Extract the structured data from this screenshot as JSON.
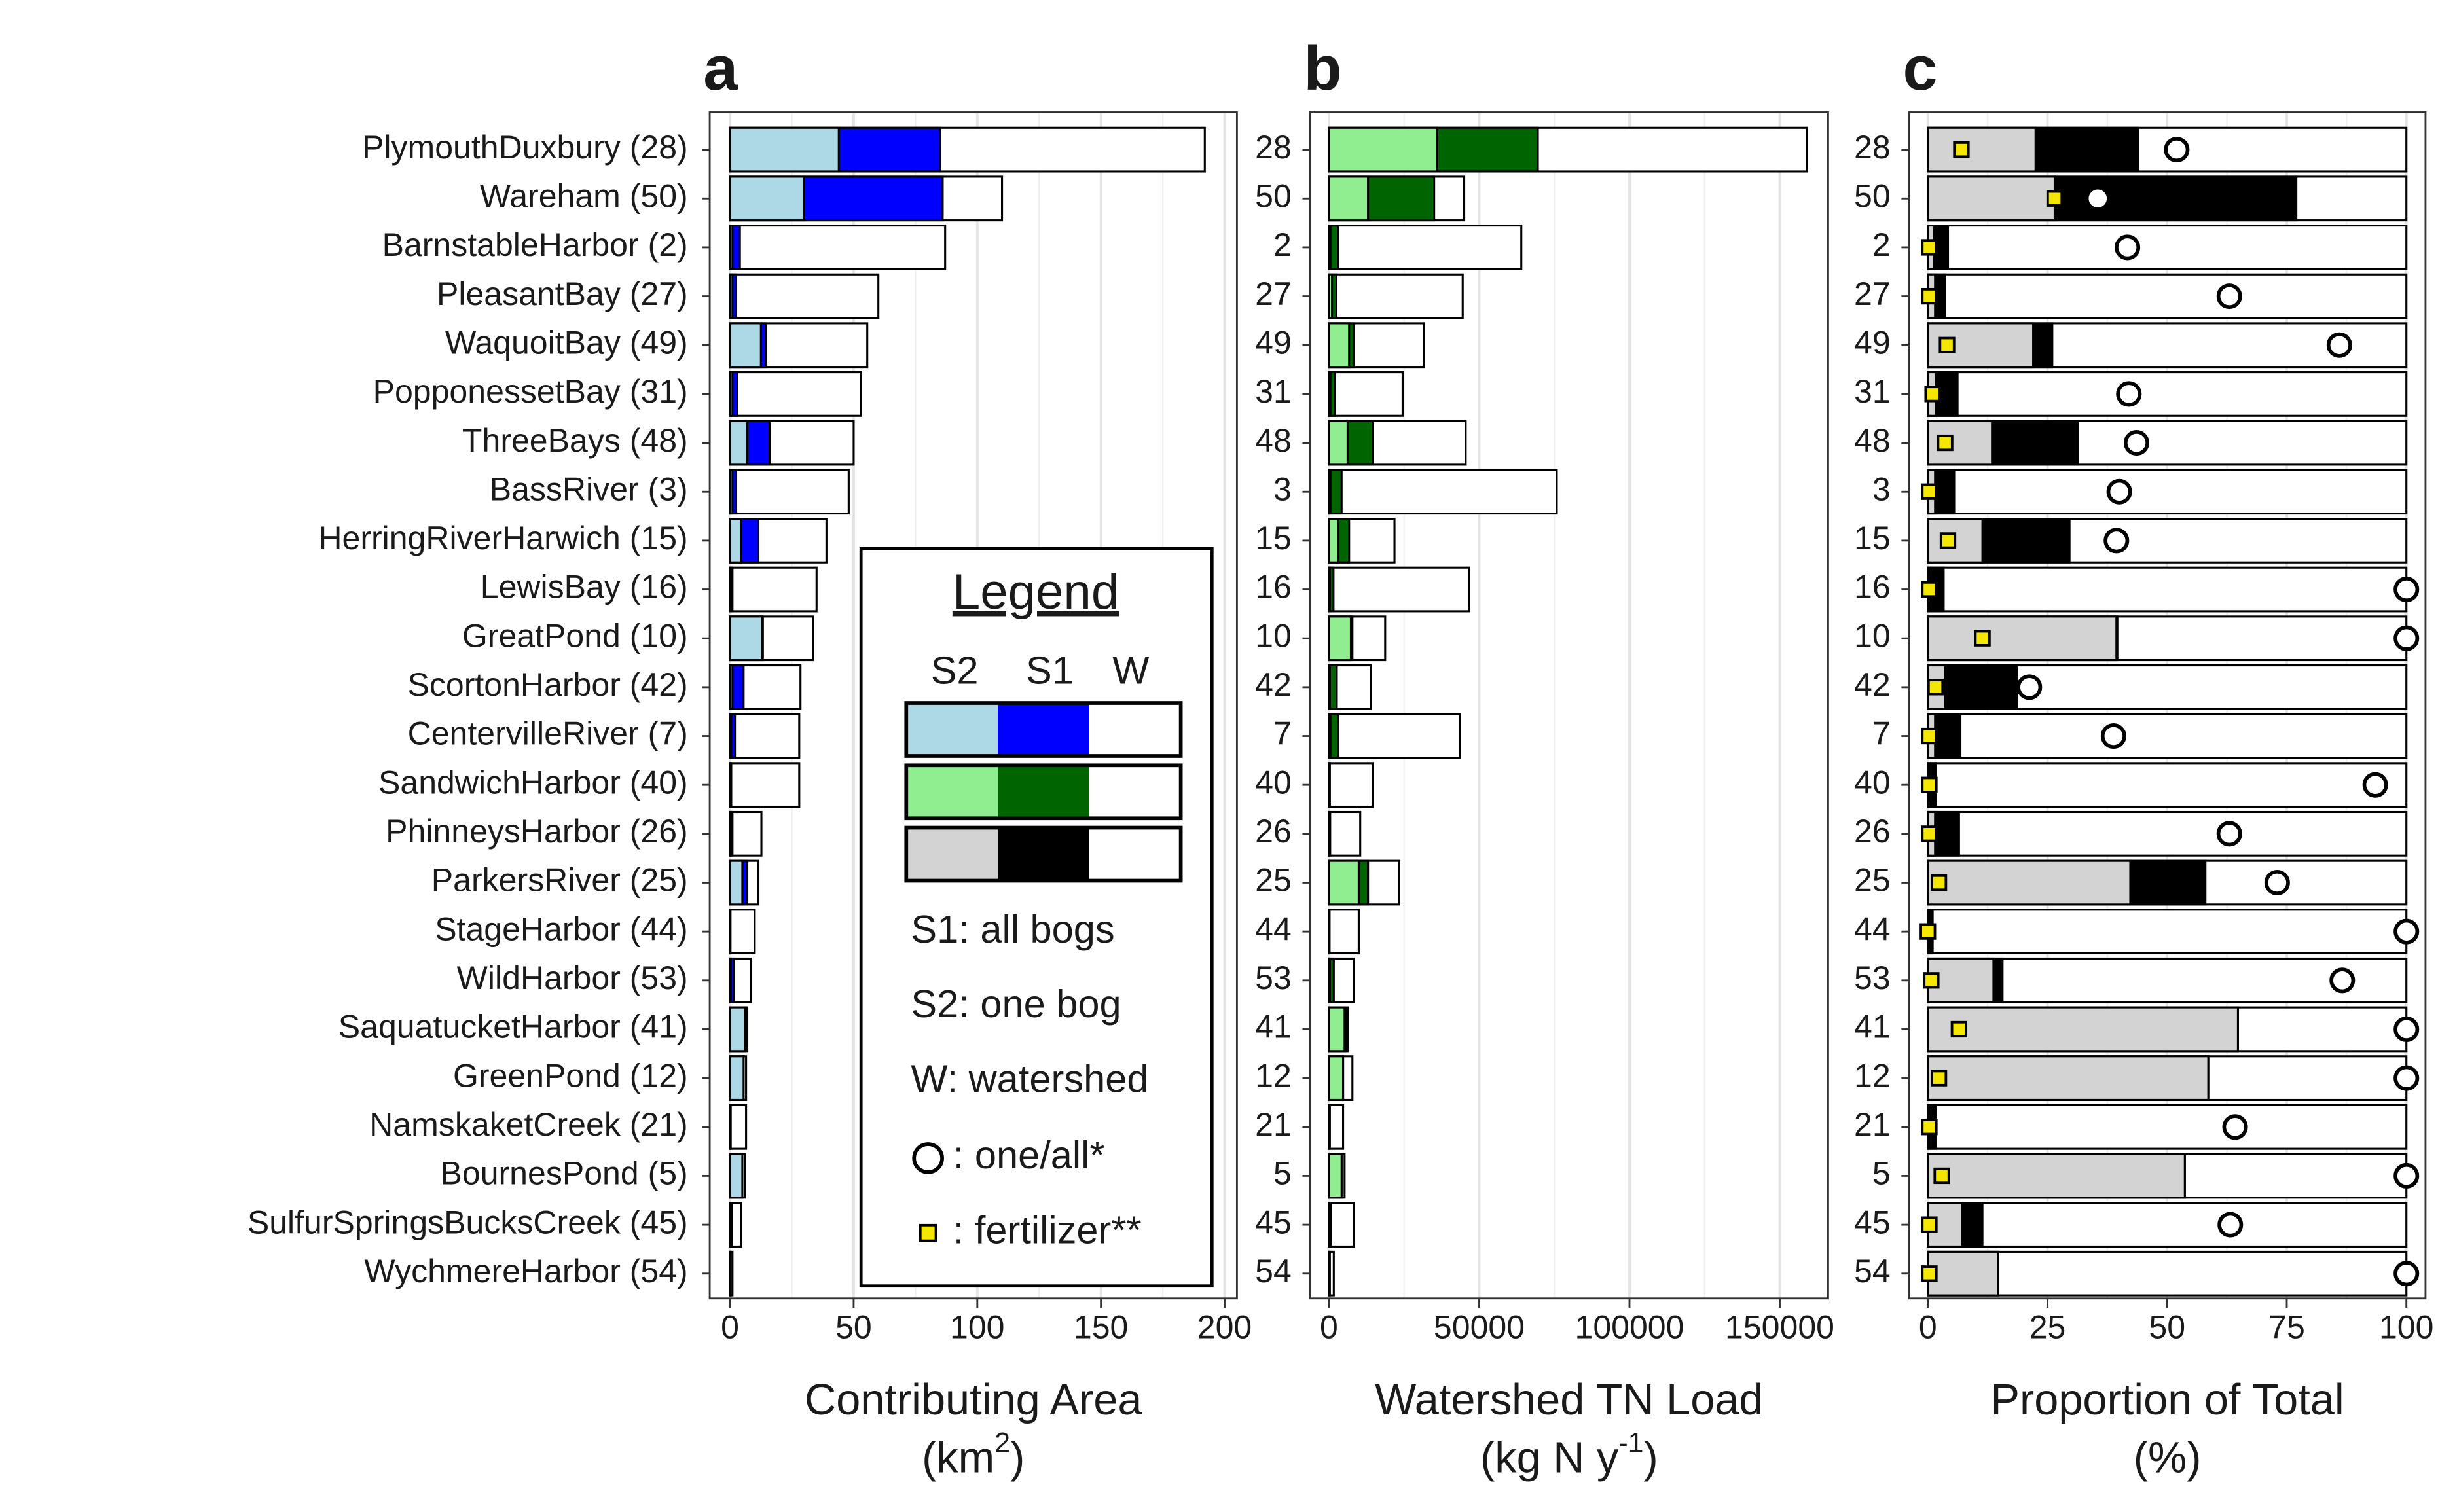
{
  "chart_data": [
    {
      "type": "bar",
      "panel_label": "a",
      "xlabel": "Contributing Area",
      "xunit": {
        "pre": "(km",
        "sup": "2",
        "post": ")"
      },
      "categories": [
        "PlymouthDuxbury (28)",
        "Wareham (50)",
        "BarnstableHarbor (2)",
        "PleasantBay (27)",
        "WaquoitBay (49)",
        "PopponessetBay (31)",
        "ThreeBays (48)",
        "BassRiver (3)",
        "HerringRiverHarwich (15)",
        "LewisBay (16)",
        "GreatPond (10)",
        "ScortonHarbor (42)",
        "CentervilleRiver (7)",
        "SandwichHarbor (40)",
        "PhinneysHarbor (26)",
        "ParkersRiver (25)",
        "StageHarbor (44)",
        "WildHarbor (53)",
        "SaquatucketHarbor (41)",
        "GreenPond (12)",
        "NamskaketCreek (21)",
        "BournesPond (5)",
        "SulfurSpringsBucksCreek (45)",
        "WychmereHarbor (54)"
      ],
      "series": [
        {
          "name": "W",
          "color": "#ffffff",
          "values": [
            192,
            110,
            87,
            60,
            55.5,
            53,
            50,
            48,
            39,
            35,
            33.5,
            28.5,
            28,
            28,
            12.7,
            11.5,
            10,
            8.5,
            7,
            6.5,
            6.5,
            6,
            4.5,
            1
          ]
        },
        {
          "name": "S1",
          "color": "#0000ff",
          "values": [
            85,
            86,
            4,
            2.5,
            14.5,
            3,
            16,
            2.5,
            11.5,
            1,
            13.3,
            5.5,
            2,
            0.5,
            1,
            7,
            0.2,
            1.5,
            6,
            5.5,
            0.3,
            5,
            0.8,
            0.2
          ]
        },
        {
          "name": "S2",
          "color": "#add8e6",
          "values": [
            44,
            30,
            1,
            1,
            12.5,
            1,
            7,
            1,
            4.5,
            0.5,
            13,
            1,
            0.5,
            0.2,
            0.2,
            5,
            0.1,
            0.3,
            6,
            5.5,
            0.1,
            5,
            0.3,
            0.1
          ]
        }
      ],
      "xlim": [
        -8.2,
        205
      ],
      "xticks": [
        0,
        50,
        100,
        150,
        200
      ],
      "minor_xticks": [
        25,
        75,
        125,
        175
      ],
      "grid": true,
      "legend": {
        "title": "Legend",
        "notes": [
          "S1: all bogs",
          "S2: one bog",
          "W: watershed"
        ],
        "circle_note": ": one/all*",
        "square_note": ": fertilizer**"
      }
    },
    {
      "type": "bar",
      "panel_label": "b",
      "xlabel": "Watershed TN Load",
      "xunit": {
        "pre": "(kg N y",
        "sup": "-1",
        "post": ")"
      },
      "categories": [
        "28",
        "50",
        "2",
        "27",
        "49",
        "31",
        "48",
        "3",
        "15",
        "16",
        "10",
        "42",
        "7",
        "40",
        "26",
        "25",
        "44",
        "53",
        "41",
        "12",
        "21",
        "5",
        "45",
        "54"
      ],
      "series": [
        {
          "color": "#ffffff",
          "values": [
            159000,
            45000,
            64000,
            44500,
            31500,
            24500,
            45500,
            75800,
            21800,
            46700,
            18700,
            14000,
            43600,
            14500,
            10400,
            23400,
            9900,
            8300,
            6200,
            7800,
            4700,
            5200,
            8300,
            1600
          ]
        },
        {
          "color": "#006400",
          "values": [
            69500,
            35000,
            3000,
            2500,
            8300,
            2000,
            14500,
            4200,
            6700,
            1500,
            7800,
            2600,
            3100,
            300,
            400,
            13000,
            200,
            1600,
            5700,
            4700,
            300,
            4200,
            600,
            300
          ]
        },
        {
          "color": "#90ee90",
          "values": [
            36000,
            13000,
            500,
            1000,
            6700,
            500,
            6200,
            500,
            3100,
            300,
            7300,
            300,
            500,
            100,
            100,
            9900,
            100,
            300,
            5200,
            4700,
            100,
            4200,
            200,
            100
          ]
        }
      ],
      "xlim": [
        -6230,
        166100
      ],
      "xticks": [
        0,
        50000,
        100000,
        150000
      ],
      "minor_xticks": [
        25000,
        75000,
        125000
      ],
      "grid": true
    },
    {
      "type": "bar",
      "panel_label": "c",
      "xlabel": "Proportion of Total",
      "xunit": {
        "pre": "(%)"
      },
      "categories": [
        "28",
        "50",
        "2",
        "27",
        "49",
        "31",
        "48",
        "3",
        "15",
        "16",
        "10",
        "42",
        "7",
        "40",
        "26",
        "25",
        "44",
        "53",
        "41",
        "12",
        "21",
        "5",
        "45",
        "54"
      ],
      "series": [
        {
          "color": "#ffffff",
          "values": [
            100,
            100,
            100,
            100,
            100,
            100,
            100,
            100,
            100,
            100,
            100,
            100,
            100,
            100,
            100,
            100,
            100,
            100,
            100,
            100,
            100,
            100,
            100,
            100
          ]
        },
        {
          "color": "#000000",
          "values": [
            44,
            77,
            4.2,
            3.6,
            26,
            6.2,
            31.3,
            5.5,
            29.6,
            3.3,
            39.6,
            18.6,
            6.8,
            1.6,
            6.5,
            58,
            1,
            15.6,
            64.8,
            58.6,
            1.6,
            53.7,
            11.4,
            14.7
          ]
        },
        {
          "color": "#d3d3d3",
          "values": [
            22.5,
            26.5,
            1.3,
            1.5,
            22,
            1.7,
            13.4,
            1.5,
            11.4,
            0.5,
            39.4,
            3.6,
            1.5,
            0.5,
            1.5,
            42.3,
            0.5,
            13.7,
            64.8,
            58.6,
            0.5,
            53.7,
            7.2,
            14.7
          ]
        }
      ],
      "points": [
        {
          "shape": "circle",
          "color": "#ffffff",
          "values": [
            52,
            35.5,
            41.7,
            63,
            86,
            42,
            43.6,
            40,
            39.4,
            100,
            100,
            21.2,
            38.8,
            93.5,
            63,
            73,
            100,
            86.6,
            100,
            100,
            64.2,
            100,
            63.2,
            100
          ]
        },
        {
          "shape": "square",
          "color": "#f5e600",
          "values": [
            7,
            26.5,
            0.3,
            0.3,
            4,
            1,
            3.6,
            0.3,
            4.2,
            0.3,
            11.4,
            1.6,
            0.3,
            0.3,
            0.3,
            2.3,
            0,
            0.7,
            6.5,
            2.3,
            0.3,
            2.9,
            0.3,
            0.3
          ]
        }
      ],
      "xlim": [
        -3.9,
        104
      ],
      "xticks": [
        0,
        25,
        50,
        75,
        100
      ],
      "minor_xticks": [
        12.5,
        37.5,
        62.5,
        87.5
      ],
      "grid": true
    }
  ]
}
